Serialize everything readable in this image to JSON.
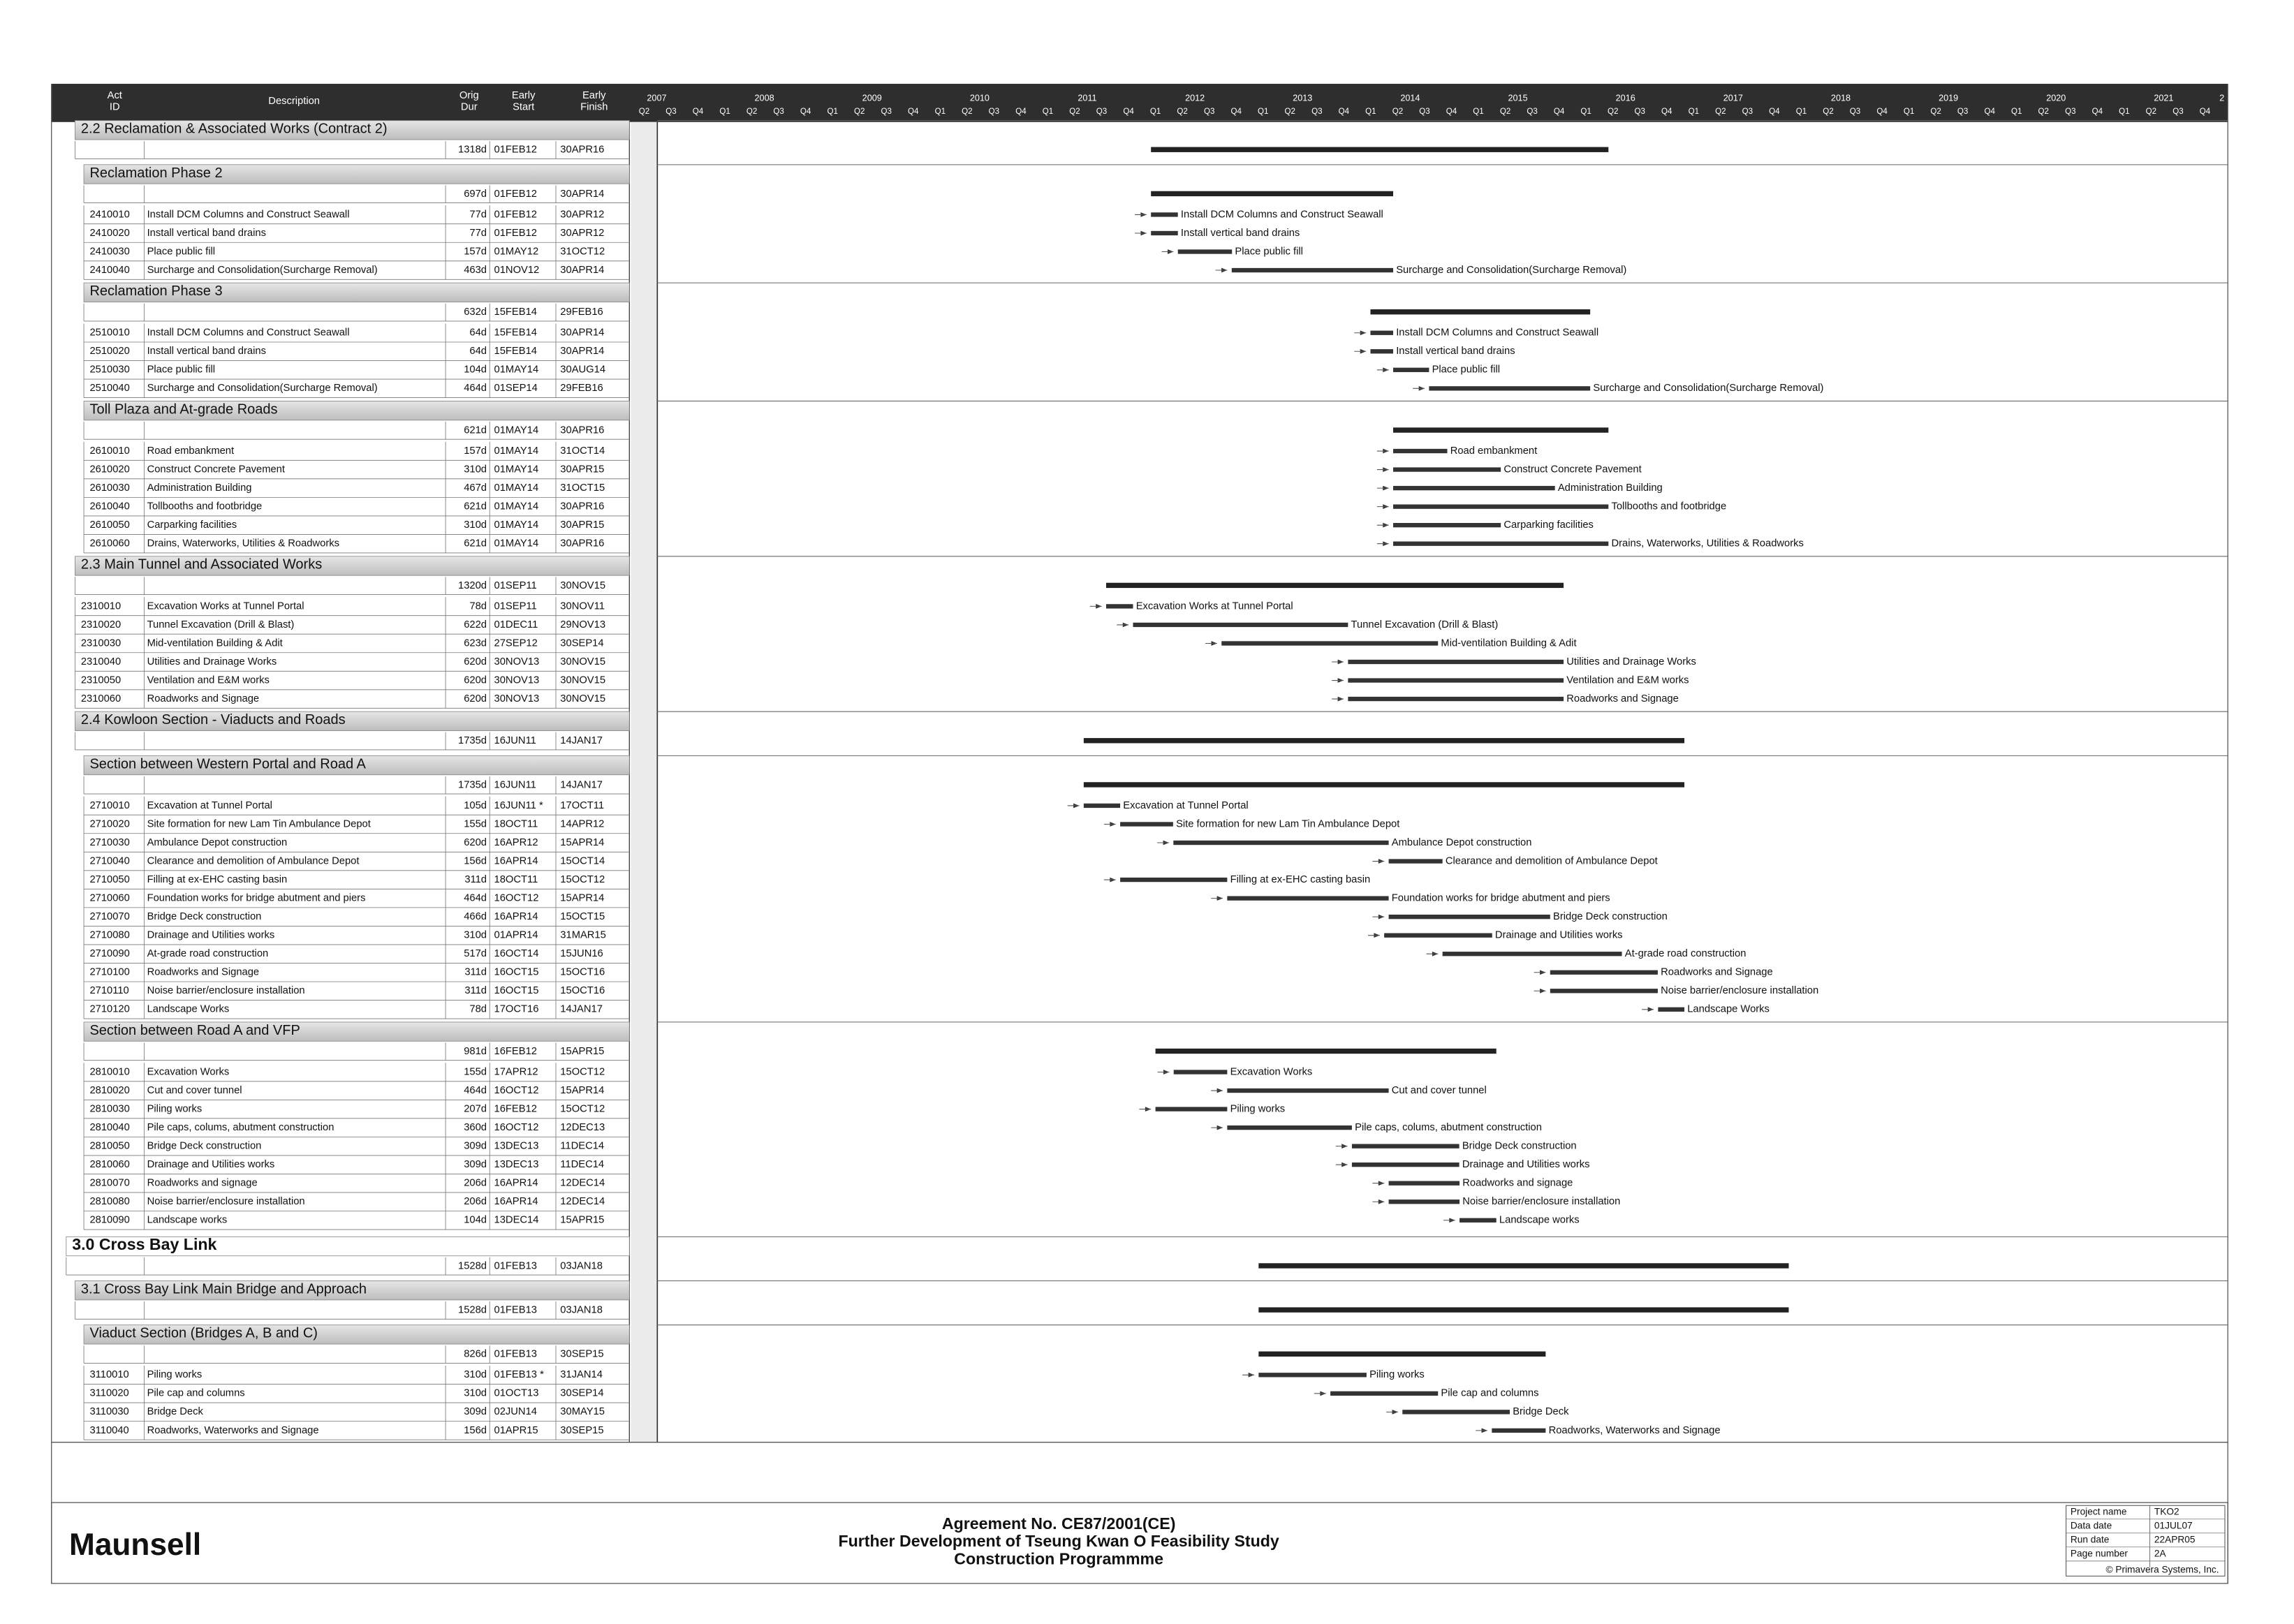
{
  "header": {
    "columns": [
      [
        "Act",
        "ID"
      ],
      [
        "Description"
      ],
      [
        "Orig",
        "Dur"
      ],
      [
        "Early",
        "Start"
      ],
      [
        "Early",
        "Finish"
      ]
    ],
    "years": [
      2007,
      2008,
      2009,
      2010,
      2011,
      2012,
      2013,
      2014,
      2015,
      2016,
      2017,
      2018,
      2019,
      2020,
      2021,
      2
    ],
    "quarters": [
      "Q1",
      "Q2",
      "Q3",
      "Q4"
    ]
  },
  "sections": [
    {
      "title": "2.2 Reclamation & Associated Works (Contract 2)",
      "summary": {
        "dur": "1318d",
        "start": "01FEB12",
        "finish": "30APR16"
      },
      "activities": []
    },
    {
      "title": "Reclamation Phase 2",
      "summary": {
        "dur": "697d",
        "start": "01FEB12",
        "finish": "30APR14"
      },
      "activities": [
        {
          "id": "2410010",
          "description": "Install DCM Columns and Construct Seawall",
          "dur": "77d",
          "start": "01FEB12",
          "finish": "30APR12"
        },
        {
          "id": "2410020",
          "description": "Install vertical band drains",
          "dur": "77d",
          "start": "01FEB12",
          "finish": "30APR12"
        },
        {
          "id": "2410030",
          "description": "Place public fill",
          "dur": "157d",
          "start": "01MAY12",
          "finish": "31OCT12"
        },
        {
          "id": "2410040",
          "description": "Surcharge and Consolidation(Surcharge Removal)",
          "dur": "463d",
          "start": "01NOV12",
          "finish": "30APR14"
        }
      ]
    },
    {
      "title": "Reclamation Phase 3",
      "summary": {
        "dur": "632d",
        "start": "15FEB14",
        "finish": "29FEB16"
      },
      "activities": [
        {
          "id": "2510010",
          "description": "Install DCM Columns and Construct Seawall",
          "dur": "64d",
          "start": "15FEB14",
          "finish": "30APR14"
        },
        {
          "id": "2510020",
          "description": "Install vertical band drains",
          "dur": "64d",
          "start": "15FEB14",
          "finish": "30APR14"
        },
        {
          "id": "2510030",
          "description": "Place public fill",
          "dur": "104d",
          "start": "01MAY14",
          "finish": "30AUG14"
        },
        {
          "id": "2510040",
          "description": "Surcharge and Consolidation(Surcharge Removal)",
          "dur": "464d",
          "start": "01SEP14",
          "finish": "29FEB16"
        }
      ]
    },
    {
      "title": "Toll Plaza and At-grade Roads",
      "summary": {
        "dur": "621d",
        "start": "01MAY14",
        "finish": "30APR16"
      },
      "activities": [
        {
          "id": "2610010",
          "description": "Road embankment",
          "dur": "157d",
          "start": "01MAY14",
          "finish": "31OCT14"
        },
        {
          "id": "2610020",
          "description": "Construct Concrete Pavement",
          "dur": "310d",
          "start": "01MAY14",
          "finish": "30APR15"
        },
        {
          "id": "2610030",
          "description": "Administration Building",
          "dur": "467d",
          "start": "01MAY14",
          "finish": "31OCT15"
        },
        {
          "id": "2610040",
          "description": "Tollbooths and footbridge",
          "dur": "621d",
          "start": "01MAY14",
          "finish": "30APR16"
        },
        {
          "id": "2610050",
          "description": "Carparking facilities",
          "dur": "310d",
          "start": "01MAY14",
          "finish": "30APR15"
        },
        {
          "id": "2610060",
          "description": "Drains, Waterworks, Utilities & Roadworks",
          "dur": "621d",
          "start": "01MAY14",
          "finish": "30APR16"
        }
      ]
    },
    {
      "title": "2.3 Main Tunnel and Associated Works",
      "summary": {
        "dur": "1320d",
        "start": "01SEP11",
        "finish": "30NOV15"
      },
      "activities": [
        {
          "id": "2310010",
          "description": "Excavation Works at Tunnel Portal",
          "dur": "78d",
          "start": "01SEP11",
          "finish": "30NOV11"
        },
        {
          "id": "2310020",
          "description": "Tunnel Excavation (Drill & Blast)",
          "dur": "622d",
          "start": "01DEC11",
          "finish": "29NOV13"
        },
        {
          "id": "2310030",
          "description": "Mid-ventilation Building & Adit",
          "dur": "623d",
          "start": "27SEP12",
          "finish": "30SEP14"
        },
        {
          "id": "2310040",
          "description": "Utilities and Drainage Works",
          "dur": "620d",
          "start": "30NOV13",
          "finish": "30NOV15"
        },
        {
          "id": "2310050",
          "description": "Ventilation and E&M works",
          "dur": "620d",
          "start": "30NOV13",
          "finish": "30NOV15"
        },
        {
          "id": "2310060",
          "description": "Roadworks and Signage",
          "dur": "620d",
          "start": "30NOV13",
          "finish": "30NOV15"
        }
      ]
    },
    {
      "title": "2.4 Kowloon Section - Viaducts and Roads",
      "summary": {
        "dur": "1735d",
        "start": "16JUN11",
        "finish": "14JAN17"
      },
      "activities": []
    },
    {
      "title": "Section between Western Portal and Road A",
      "summary": {
        "dur": "1735d",
        "start": "16JUN11",
        "finish": "14JAN17"
      },
      "activities": [
        {
          "id": "2710010",
          "description": "Excavation at Tunnel Portal",
          "dur": "105d",
          "start": "16JUN11 *",
          "finish": "17OCT11"
        },
        {
          "id": "2710020",
          "description": "Site formation for new Lam Tin Ambulance Depot",
          "dur": "155d",
          "start": "18OCT11",
          "finish": "14APR12"
        },
        {
          "id": "2710030",
          "description": "Ambulance Depot construction",
          "dur": "620d",
          "start": "16APR12",
          "finish": "15APR14"
        },
        {
          "id": "2710040",
          "description": "Clearance and demolition of Ambulance Depot",
          "dur": "156d",
          "start": "16APR14",
          "finish": "15OCT14"
        },
        {
          "id": "2710050",
          "description": "Filling at ex-EHC casting basin",
          "dur": "311d",
          "start": "18OCT11",
          "finish": "15OCT12"
        },
        {
          "id": "2710060",
          "description": "Foundation works for bridge abutment and piers",
          "dur": "464d",
          "start": "16OCT12",
          "finish": "15APR14"
        },
        {
          "id": "2710070",
          "description": "Bridge Deck construction",
          "dur": "466d",
          "start": "16APR14",
          "finish": "15OCT15"
        },
        {
          "id": "2710080",
          "description": "Drainage and Utilities works",
          "dur": "310d",
          "start": "01APR14",
          "finish": "31MAR15"
        },
        {
          "id": "2710090",
          "description": "At-grade road construction",
          "dur": "517d",
          "start": "16OCT14",
          "finish": "15JUN16"
        },
        {
          "id": "2710100",
          "description": "Roadworks and Signage",
          "dur": "311d",
          "start": "16OCT15",
          "finish": "15OCT16"
        },
        {
          "id": "2710110",
          "description": "Noise barrier/enclosure installation",
          "dur": "311d",
          "start": "16OCT15",
          "finish": "15OCT16"
        },
        {
          "id": "2710120",
          "description": "Landscape Works",
          "dur": "78d",
          "start": "17OCT16",
          "finish": "14JAN17"
        }
      ]
    },
    {
      "title": "Section between Road A and VFP",
      "summary": {
        "dur": "981d",
        "start": "16FEB12",
        "finish": "15APR15"
      },
      "activities": [
        {
          "id": "2810010",
          "description": "Excavation Works",
          "dur": "155d",
          "start": "17APR12",
          "finish": "15OCT12"
        },
        {
          "id": "2810020",
          "description": "Cut and cover tunnel",
          "dur": "464d",
          "start": "16OCT12",
          "finish": "15APR14"
        },
        {
          "id": "2810030",
          "description": "Piling works",
          "dur": "207d",
          "start": "16FEB12",
          "finish": "15OCT12"
        },
        {
          "id": "2810040",
          "description": "Pile caps, colums, abutment construction",
          "dur": "360d",
          "start": "16OCT12",
          "finish": "12DEC13"
        },
        {
          "id": "2810050",
          "description": "Bridge Deck construction",
          "dur": "309d",
          "start": "13DEC13",
          "finish": "11DEC14"
        },
        {
          "id": "2810060",
          "description": "Drainage and Utilities works",
          "dur": "309d",
          "start": "13DEC13",
          "finish": "11DEC14"
        },
        {
          "id": "2810070",
          "description": "Roadworks and signage",
          "dur": "206d",
          "start": "16APR14",
          "finish": "12DEC14"
        },
        {
          "id": "2810080",
          "description": "Noise barrier/enclosure installation",
          "dur": "206d",
          "start": "16APR14",
          "finish": "12DEC14"
        },
        {
          "id": "2810090",
          "description": "Landscape works",
          "dur": "104d",
          "start": "13DEC14",
          "finish": "15APR15"
        }
      ]
    },
    {
      "title": "3.0 Cross Bay Link",
      "summary": {
        "dur": "1528d",
        "start": "01FEB13",
        "finish": "03JAN18"
      },
      "activities": []
    },
    {
      "title": "3.1 Cross Bay Link Main Bridge and Approach",
      "summary": {
        "dur": "1528d",
        "start": "01FEB13",
        "finish": "03JAN18"
      },
      "activities": []
    },
    {
      "title": "Viaduct Section (Bridges A, B and C)",
      "summary": {
        "dur": "826d",
        "start": "01FEB13",
        "finish": "30SEP15"
      },
      "activities": [
        {
          "id": "3110010",
          "description": "Piling works",
          "dur": "310d",
          "start": "01FEB13 *",
          "finish": "31JAN14"
        },
        {
          "id": "3110020",
          "description": "Pile cap and columns",
          "dur": "310d",
          "start": "01OCT13",
          "finish": "30SEP14"
        },
        {
          "id": "3110030",
          "description": "Bridge Deck",
          "dur": "309d",
          "start": "02JUN14",
          "finish": "30MAY15"
        },
        {
          "id": "3110040",
          "description": "Roadworks, Waterworks and Signage",
          "dur": "156d",
          "start": "01APR15",
          "finish": "30SEP15"
        }
      ]
    }
  ],
  "footer": {
    "company": "Maunsell",
    "title_lines": [
      "Agreement No. CE87/2001(CE)",
      "Further Development of Tseung Kwan O Feasibility Study",
      "Construction Programmme"
    ],
    "info": [
      [
        "Project name",
        "TKO2"
      ],
      [
        "Data date",
        "01JUL07"
      ],
      [
        "Run date",
        "22APR05"
      ],
      [
        "Page number",
        "2A"
      ]
    ],
    "copyright": "© Primavera Systems, Inc."
  }
}
